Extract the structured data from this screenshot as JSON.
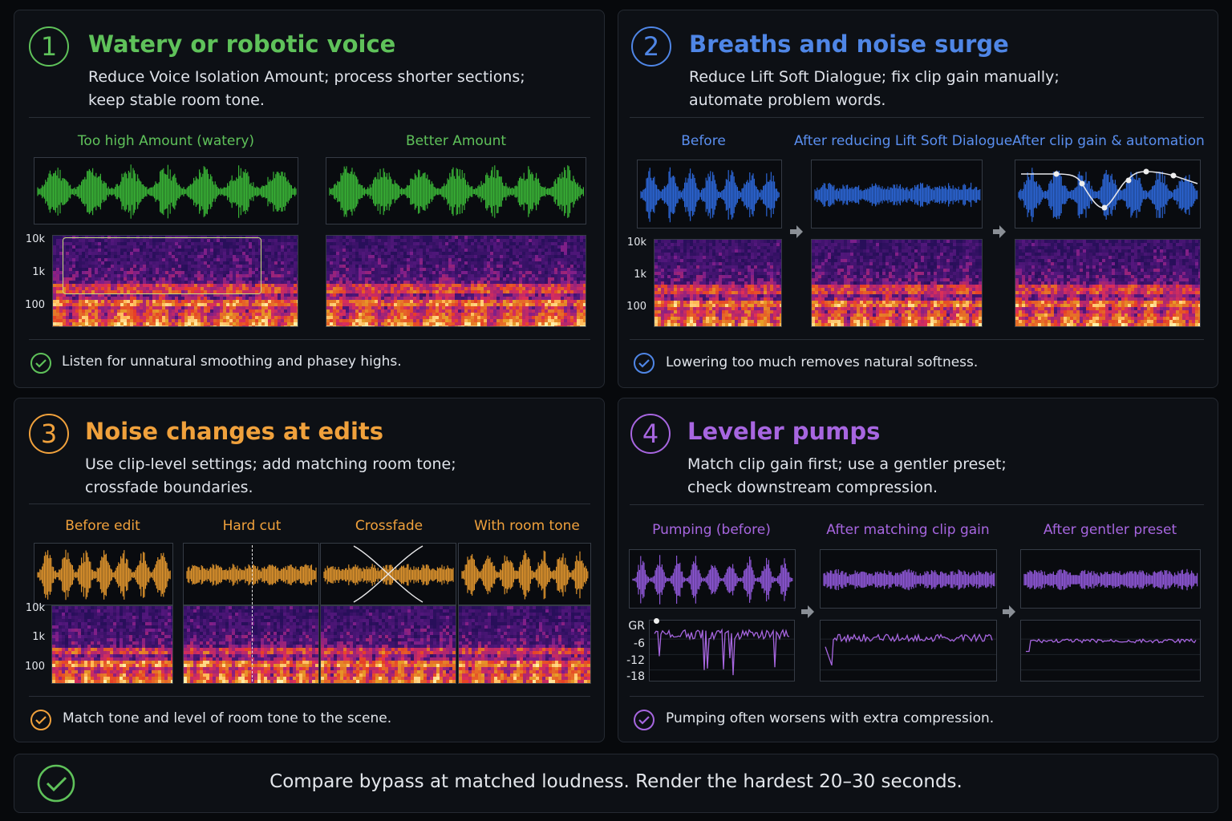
{
  "colors": {
    "p1": "#5fc25a",
    "p2": "#4f86e6",
    "p3": "#f0a13c",
    "p4": "#a766e0",
    "wave1": "#3ec23a",
    "wave2": "#2f6ee8",
    "wave3": "#f2a030",
    "wave4": "#9a5ee8"
  },
  "panels": [
    {
      "number": "1",
      "title": "Watery or robotic voice",
      "desc": [
        "Reduce Voice Isolation Amount; process shorter sections;",
        "keep stable room tone."
      ],
      "labels": [
        "Too high Amount (watery)",
        "Better Amount"
      ],
      "tip": "Listen for unnatural smoothing and phasey highs."
    },
    {
      "number": "2",
      "title": "Breaths and noise surge",
      "desc": [
        "Reduce Lift Soft Dialogue; fix clip gain manually;",
        "automate problem words."
      ],
      "labels": [
        "Before",
        "After reducing Lift Soft Dialogue",
        "After clip gain & automation"
      ],
      "tip": "Lowering too much removes natural softness."
    },
    {
      "number": "3",
      "title": "Noise changes at edits",
      "desc": [
        "Use clip-level settings; add matching room tone;",
        "crossfade boundaries."
      ],
      "labels": [
        "Before edit",
        "Hard cut",
        "Crossfade",
        "With room tone"
      ],
      "tip": "Match tone and level of room tone to the scene."
    },
    {
      "number": "4",
      "title": "Leveler pumps",
      "desc": [
        "Match clip gain first; use a gentler preset;",
        "check downstream compression."
      ],
      "labels": [
        "Pumping (before)",
        "After matching clip gain",
        "After gentler preset"
      ],
      "tip": "Pumping often worsens with extra compression."
    }
  ],
  "freq_axis": [
    "10k",
    "1k",
    "100"
  ],
  "gr_axis": [
    "GR",
    "-6",
    "-12",
    "-18"
  ],
  "footer": "Compare bypass at matched loudness. Render the hardest 20–30 seconds."
}
